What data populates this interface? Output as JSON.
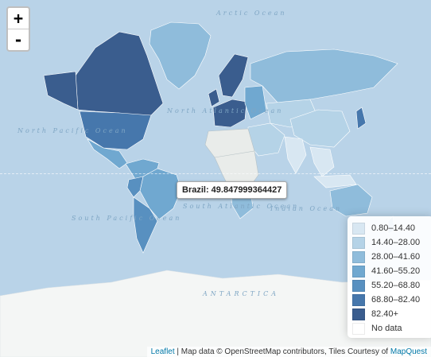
{
  "map": {
    "ocean_labels": {
      "arctic": "Arctic Ocean",
      "north_atlantic": "North Atlantic Ocean",
      "north_pacific": "North Pacific Ocean",
      "south_atlantic": "South Atlantic Ocean",
      "south_pacific": "South Pacific Ocean",
      "indian": "Indian Ocean",
      "antarctica": "ANTARCTICA"
    },
    "colors": {
      "ocean": "#b9d3e8",
      "land_nodata": "#e9ecea",
      "antarctica": "#f4f6f5"
    }
  },
  "zoom": {
    "in_label": "+",
    "out_label": "-"
  },
  "tooltip": {
    "text": "Brazil: 49.847999364427"
  },
  "legend": {
    "items": [
      {
        "label": "0.80–14.40",
        "color": "#d8e7f2"
      },
      {
        "label": "14.40–28.00",
        "color": "#b5d3e7"
      },
      {
        "label": "28.00–41.60",
        "color": "#8fbcdb"
      },
      {
        "label": "41.60–55.20",
        "color": "#70a8d0"
      },
      {
        "label": "55.20–68.80",
        "color": "#5890c0"
      },
      {
        "label": "68.80–82.40",
        "color": "#4677ac"
      },
      {
        "label": "82.40+",
        "color": "#3a5d8e"
      },
      {
        "label": "No data",
        "color": "#ffffff"
      }
    ]
  },
  "attribution": {
    "leaflet": "Leaflet",
    "middle": " | Map data © OpenStreetMap contributors, Tiles Courtesy of ",
    "mapquest": "MapQuest"
  }
}
